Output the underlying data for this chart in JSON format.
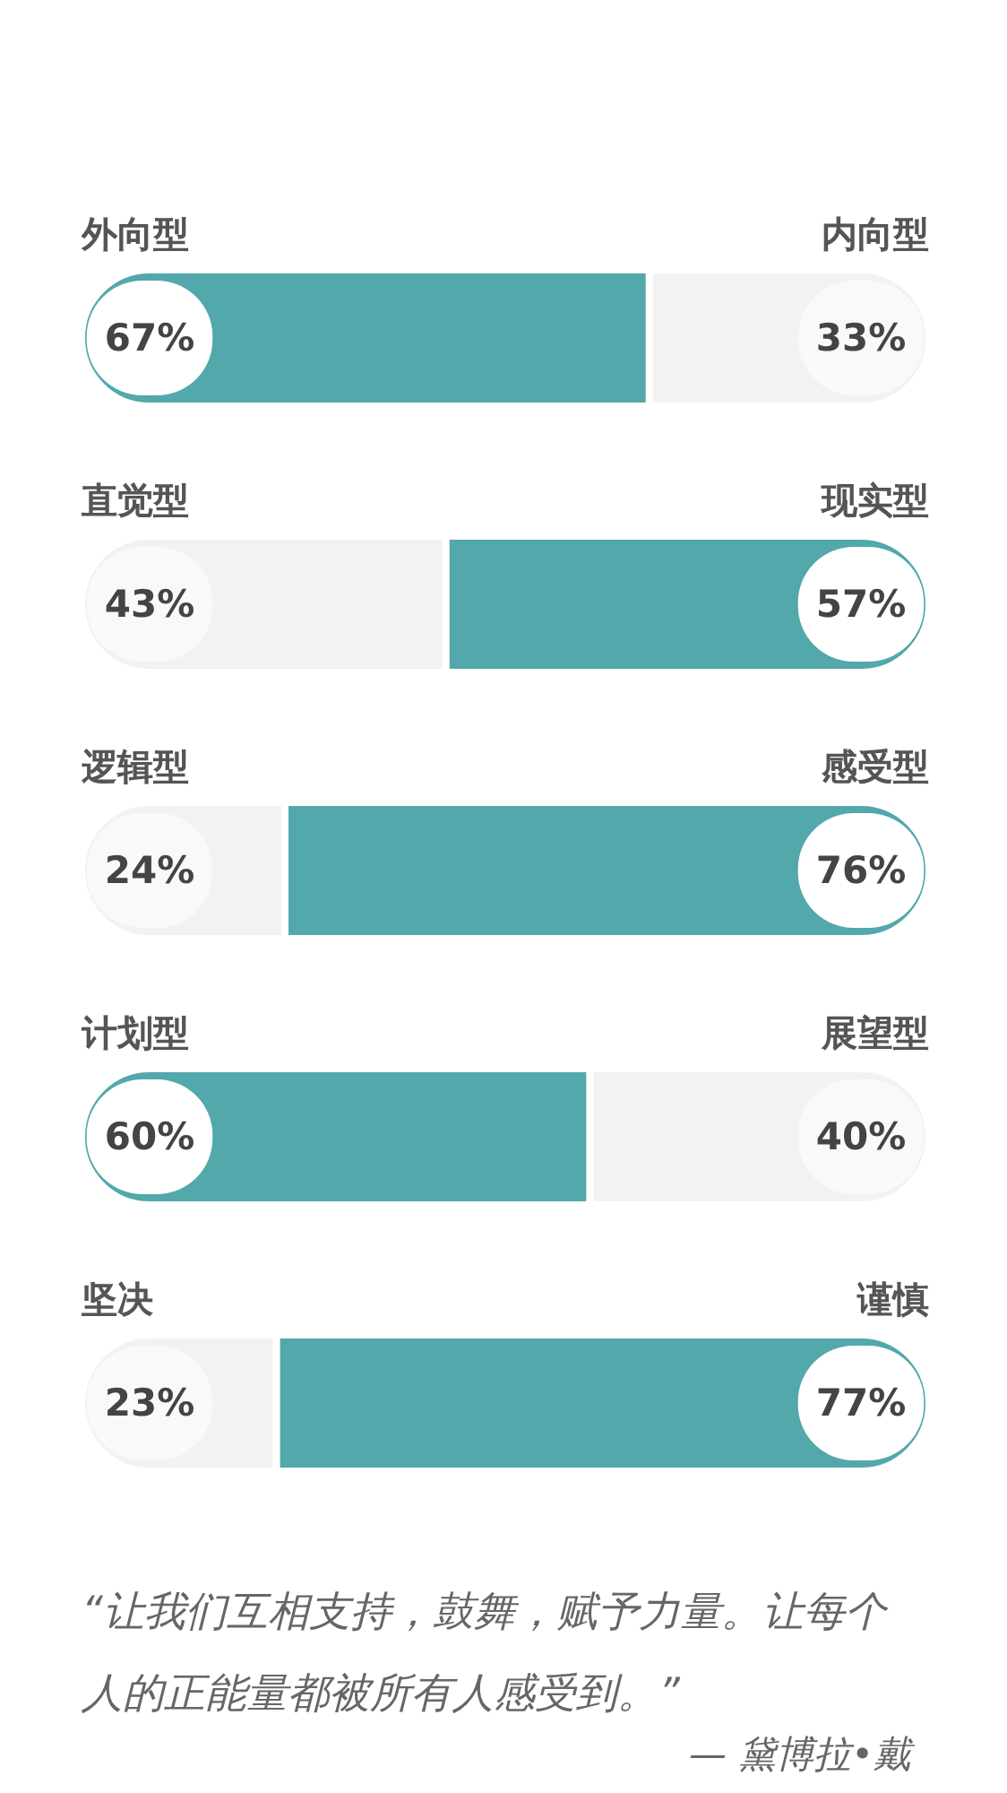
{
  "chart_data": {
    "type": "bar",
    "orientation": "horizontal",
    "stacked": true,
    "categories": [
      "外向型",
      "直觉型",
      "逻辑型",
      "计划型",
      "坚决"
    ],
    "y2_categories": [
      "内向型",
      "现实型",
      "感受型",
      "展望型",
      "谨慎"
    ],
    "series": [
      {
        "colors": [
          "#52a8aa",
          "#f2f2f2",
          "#f2f2f2",
          "#52a8aa",
          "#f2f2f2"
        ],
        "values": [
          67,
          43,
          24,
          60,
          23
        ],
        "value_labels": [
          "67%",
          "43%",
          "24%",
          "60%",
          "23%"
        ]
      },
      {
        "colors": [
          "#f2f2f2",
          "#52a8aa",
          "#52a8aa",
          "#f2f2f2",
          "#52a8aa"
        ],
        "values": [
          33,
          57,
          76,
          40,
          77
        ],
        "value_labels": [
          "33%",
          "57%",
          "76%",
          "40%",
          "77%"
        ]
      }
    ],
    "xlim": [
      0,
      100
    ],
    "tick_labels": false,
    "annotations": [
      "“让我们互相支持，鼓舞，赋予力量。让每个人的正能量都被所有人感受到。”",
      "— 黛博拉•戴"
    ]
  }
}
